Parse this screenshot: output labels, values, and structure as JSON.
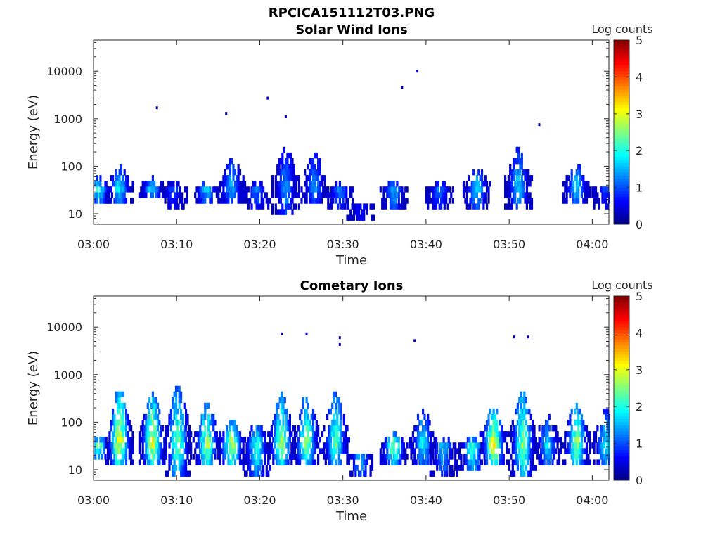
{
  "figure_title": "RPCICA151112T03.PNG",
  "chart_data": [
    {
      "type": "heatmap",
      "title": "Solar Wind Ions",
      "xlabel": "Time",
      "ylabel": "Energy (eV)",
      "xlim": [
        "03:00",
        "04:02"
      ],
      "ylim": [
        6,
        45000
      ],
      "yscale": "log",
      "x_ticks": [
        "03:00",
        "03:10",
        "03:20",
        "03:30",
        "03:40",
        "03:50",
        "04:00"
      ],
      "y_ticks": [
        "10",
        "100",
        "1000",
        "10000"
      ],
      "colorbar": {
        "label": "Log counts",
        "range": [
          0,
          5
        ],
        "ticks": [
          "0",
          "1",
          "2",
          "3",
          "4",
          "5"
        ],
        "colormap": "jet"
      },
      "grid": false,
      "features": [
        {
          "t": "03:00:30",
          "e_min": 15,
          "e_max": 50,
          "max_log": 2.1
        },
        {
          "t": "03:03:00",
          "e_min": 15,
          "e_max": 85,
          "max_log": 2.0
        },
        {
          "t": "03:07:00",
          "e_min": 20,
          "e_max": 50,
          "max_log": 2.0
        },
        {
          "t": "03:09:30",
          "e_min": 12,
          "e_max": 40,
          "max_log": 1.0
        },
        {
          "t": "03:13:30",
          "e_min": 15,
          "e_max": 40,
          "max_log": 1.8
        },
        {
          "t": "03:16:30",
          "e_min": 15,
          "e_max": 140,
          "max_log": 1.6
        },
        {
          "t": "03:19:30",
          "e_min": 10,
          "e_max": 40,
          "max_log": 1.3
        },
        {
          "t": "03:23:00",
          "e_min": 8,
          "e_max": 220,
          "max_log": 1.5
        },
        {
          "t": "03:26:30",
          "e_min": 15,
          "e_max": 170,
          "max_log": 1.5
        },
        {
          "t": "03:29:30",
          "e_min": 12,
          "e_max": 40,
          "max_log": 1.4
        },
        {
          "t": "03:32:00",
          "e_min": 6,
          "e_max": 15,
          "max_log": 1.0
        },
        {
          "t": "03:36:00",
          "e_min": 12,
          "e_max": 40,
          "max_log": 1.8
        },
        {
          "t": "03:41:30",
          "e_min": 10,
          "e_max": 40,
          "max_log": 1.3
        },
        {
          "t": "03:46:00",
          "e_min": 12,
          "e_max": 80,
          "max_log": 1.9
        },
        {
          "t": "03:51:00",
          "e_min": 12,
          "e_max": 200,
          "max_log": 1.8
        },
        {
          "t": "03:58:00",
          "e_min": 15,
          "e_max": 100,
          "max_log": 1.9
        },
        {
          "t": "04:01:30",
          "e_min": 12,
          "e_max": 30,
          "max_log": 1.0
        }
      ],
      "isolated_points": [
        {
          "t": "03:07:30",
          "e": 1700
        },
        {
          "t": "03:15:50",
          "e": 1300
        },
        {
          "t": "03:20:50",
          "e": 2700
        },
        {
          "t": "03:23:00",
          "e": 1100
        },
        {
          "t": "03:37:00",
          "e": 4500
        },
        {
          "t": "03:38:50",
          "e": 10000
        },
        {
          "t": "03:53:30",
          "e": 750
        }
      ]
    },
    {
      "type": "heatmap",
      "title": "Cometary Ions",
      "xlabel": "Time",
      "ylabel": "Energy (eV)",
      "xlim": [
        "03:00",
        "04:02"
      ],
      "ylim": [
        6,
        45000
      ],
      "yscale": "log",
      "x_ticks": [
        "03:00",
        "03:10",
        "03:20",
        "03:30",
        "03:40",
        "03:50",
        "04:00"
      ],
      "y_ticks": [
        "10",
        "100",
        "1000",
        "10000"
      ],
      "colorbar": {
        "label": "Log counts",
        "range": [
          0,
          5
        ],
        "ticks": [
          "0",
          "1",
          "2",
          "3",
          "4",
          "5"
        ],
        "colormap": "jet"
      },
      "grid": false,
      "features": [
        {
          "t": "03:00:30",
          "e_min": 15,
          "e_max": 45,
          "max_log": 2.5
        },
        {
          "t": "03:03:00",
          "e_min": 10,
          "e_max": 400,
          "max_log": 3.2
        },
        {
          "t": "03:07:00",
          "e_min": 10,
          "e_max": 350,
          "max_log": 3.2
        },
        {
          "t": "03:10:00",
          "e_min": 7,
          "e_max": 500,
          "max_log": 2.6
        },
        {
          "t": "03:13:30",
          "e_min": 10,
          "e_max": 200,
          "max_log": 2.8
        },
        {
          "t": "03:16:30",
          "e_min": 10,
          "e_max": 100,
          "max_log": 3.0
        },
        {
          "t": "03:19:30",
          "e_min": 7,
          "e_max": 80,
          "max_log": 2.3
        },
        {
          "t": "03:22:30",
          "e_min": 10,
          "e_max": 350,
          "max_log": 2.8
        },
        {
          "t": "03:25:30",
          "e_min": 10,
          "e_max": 300,
          "max_log": 2.7
        },
        {
          "t": "03:29:00",
          "e_min": 10,
          "e_max": 400,
          "max_log": 2.4
        },
        {
          "t": "03:32:00",
          "e_min": 6,
          "e_max": 20,
          "max_log": 1.9
        },
        {
          "t": "03:36:00",
          "e_min": 10,
          "e_max": 50,
          "max_log": 2.8
        },
        {
          "t": "03:39:30",
          "e_min": 10,
          "e_max": 150,
          "max_log": 2.0
        },
        {
          "t": "03:42:00",
          "e_min": 7,
          "e_max": 40,
          "max_log": 1.8
        },
        {
          "t": "03:45:30",
          "e_min": 8,
          "e_max": 40,
          "max_log": 2.4
        },
        {
          "t": "03:48:00",
          "e_min": 10,
          "e_max": 180,
          "max_log": 3.3
        },
        {
          "t": "03:51:30",
          "e_min": 7,
          "e_max": 400,
          "max_log": 2.8
        },
        {
          "t": "03:54:30",
          "e_min": 10,
          "e_max": 120,
          "max_log": 1.8
        },
        {
          "t": "03:58:00",
          "e_min": 10,
          "e_max": 220,
          "max_log": 2.8
        },
        {
          "t": "04:01:30",
          "e_min": 10,
          "e_max": 150,
          "max_log": 2.0
        }
      ],
      "isolated_points": [
        {
          "t": "03:22:30",
          "e": 7200
        },
        {
          "t": "03:25:30",
          "e": 7200
        },
        {
          "t": "03:29:30",
          "e": 6000
        },
        {
          "t": "03:29:30",
          "e": 4300
        },
        {
          "t": "03:38:30",
          "e": 5200
        },
        {
          "t": "03:50:30",
          "e": 6200
        },
        {
          "t": "03:52:10",
          "e": 6200
        }
      ]
    }
  ]
}
